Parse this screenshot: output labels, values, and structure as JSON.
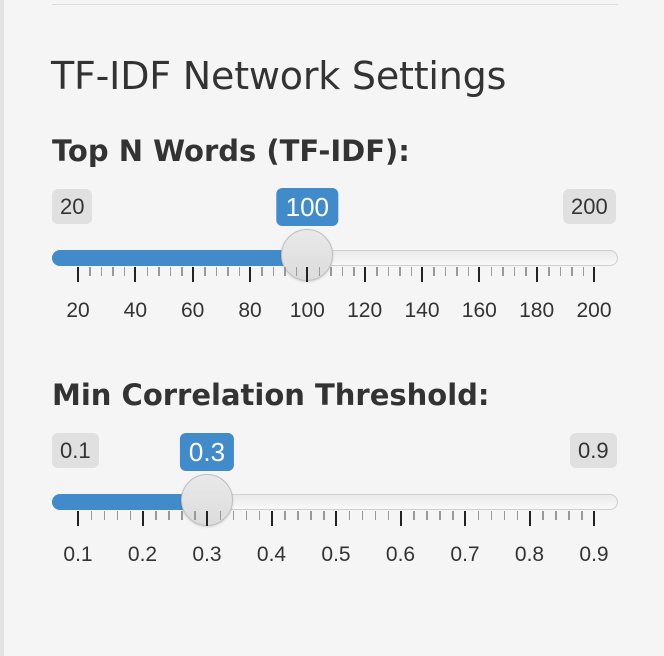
{
  "section": {
    "title": "TF-IDF Network Settings"
  },
  "sliders": [
    {
      "label": "Top N Words (TF-IDF):",
      "min": 20,
      "max": 200,
      "value": 100,
      "min_label": "20",
      "max_label": "200",
      "value_label": "100",
      "major_ticks": [
        "20",
        "40",
        "60",
        "80",
        "100",
        "120",
        "140",
        "160",
        "180",
        "200"
      ]
    },
    {
      "label": "Min Correlation Threshold:",
      "min": 0.1,
      "max": 0.9,
      "value": 0.3,
      "min_label": "0.1",
      "max_label": "0.9",
      "value_label": "0.3",
      "major_ticks": [
        "0.1",
        "0.2",
        "0.3",
        "0.4",
        "0.5",
        "0.6",
        "0.7",
        "0.8",
        "0.9"
      ]
    }
  ],
  "colors": {
    "accent": "#428bca",
    "background": "#f5f5f5",
    "text": "#333333"
  }
}
